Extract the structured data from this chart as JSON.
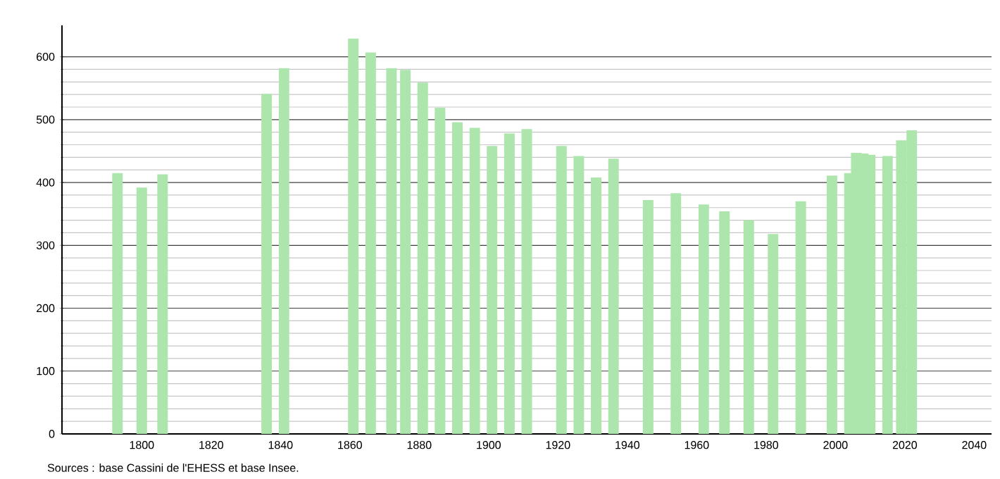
{
  "chart_data": {
    "type": "bar",
    "x": [
      1793,
      1800,
      1806,
      1836,
      1841,
      1861,
      1866,
      1872,
      1876,
      1881,
      1886,
      1891,
      1896,
      1901,
      1906,
      1911,
      1921,
      1926,
      1931,
      1936,
      1946,
      1954,
      1962,
      1968,
      1975,
      1982,
      1990,
      1999,
      2004,
      2006,
      2008,
      2010,
      2015,
      2019,
      2022
    ],
    "values": [
      415,
      392,
      413,
      541,
      582,
      629,
      607,
      582,
      579,
      559,
      519,
      496,
      487,
      458,
      478,
      485,
      458,
      442,
      408,
      438,
      372,
      383,
      365,
      354,
      340,
      318,
      370,
      411,
      415,
      447,
      446,
      444,
      442,
      467,
      483
    ],
    "color": "#ade6ad",
    "xlim": [
      1777,
      2045
    ],
    "xticks": [
      1800,
      1820,
      1840,
      1860,
      1880,
      1900,
      1920,
      1940,
      1960,
      1980,
      2000,
      2020,
      2040
    ],
    "ylim": [
      0,
      650
    ],
    "yticks": [
      0,
      100,
      200,
      300,
      400,
      500,
      600
    ],
    "grid": "y",
    "annotations": [
      "Sources : base Cassini de l'EHESS et base Insee."
    ]
  }
}
